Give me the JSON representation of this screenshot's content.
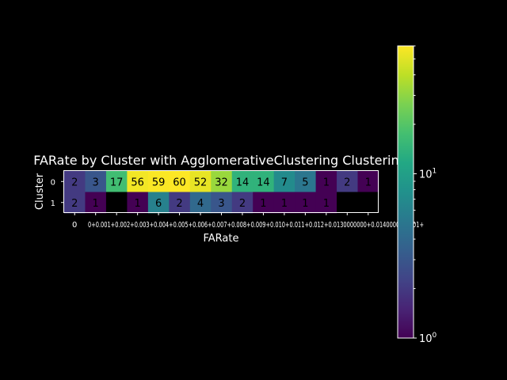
{
  "chart_data": {
    "type": "heatmap",
    "title": "FARate by Cluster with AgglomerativeClustering Clustering",
    "xlabel": "FARate",
    "ylabel": "Cluster",
    "rows": [
      "0",
      "1"
    ],
    "columns": [
      "0",
      "0+0.001",
      "0.001+0.002",
      "0.002+0.003",
      "0.003+0.004",
      "0.004+0.005",
      "0.005+0.006",
      "0.006+0.007",
      "0.007+0.008",
      "0.008+0.009",
      "0.009+0.01",
      "0.01+0.011",
      "0.011+0.012",
      "0.012+0.013",
      "0.013+"
    ],
    "xtick_labels": [
      "0",
      "0+0.001+0.002+0.003+0.004+0.005+0.006+0.007+0.008+0.009+0.010+0.011+0.012+0.0130000000+0.0140000000001+"
    ],
    "values": [
      [
        2,
        3,
        17,
        56,
        59,
        60,
        52,
        32,
        14,
        14,
        7,
        5,
        1,
        2,
        1
      ],
      [
        2,
        1,
        null,
        1,
        6,
        2,
        4,
        3,
        2,
        1,
        1,
        1,
        1,
        null,
        null
      ]
    ],
    "colorbar": {
      "scale": "log",
      "min": 1,
      "max": 60,
      "colormap": "viridis",
      "tick_labels": [
        "10^0",
        "10^1"
      ],
      "tick_values": [
        1,
        10
      ]
    },
    "grid": false,
    "missing_color": "#000000"
  }
}
